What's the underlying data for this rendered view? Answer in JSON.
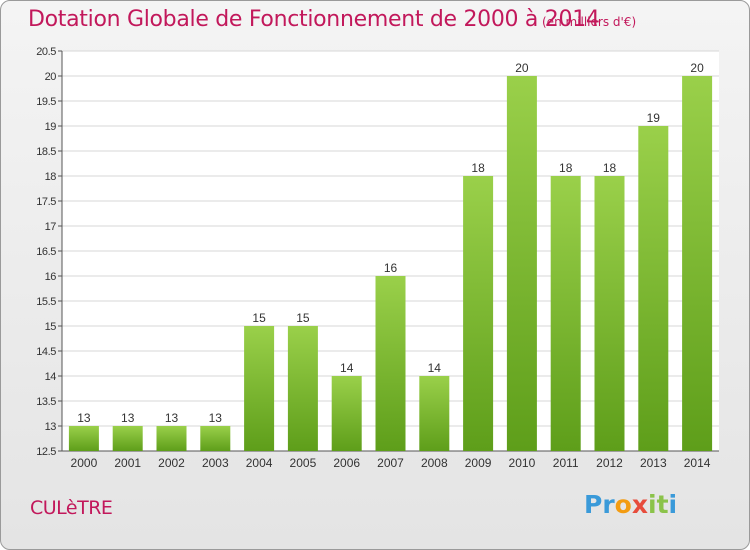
{
  "title": "Dotation Globale de Fonctionnement de 2000 à 2014",
  "subtitle": "(en milliers d'€)",
  "commune": "CULèTRE",
  "logo": {
    "letters": [
      "P",
      "r",
      "o",
      "x",
      "i",
      "t",
      "i"
    ],
    "colors": [
      "#3a9ad9",
      "#3a9ad9",
      "#f39c12",
      "#e74c3c",
      "#8bc34a",
      "#8bc34a",
      "#3a9ad9"
    ]
  },
  "colors": {
    "bar_top": "#9ad04a",
    "bar_bottom": "#5e9e1a",
    "title": "#c2185b",
    "grid": "#d7d7d7"
  },
  "chart_data": {
    "type": "bar",
    "categories": [
      "2000",
      "2001",
      "2002",
      "2003",
      "2004",
      "2005",
      "2006",
      "2007",
      "2008",
      "2009",
      "2010",
      "2011",
      "2012",
      "2013",
      "2014"
    ],
    "values": [
      13,
      13,
      13,
      13,
      15,
      15,
      14,
      16,
      14,
      18,
      20,
      18,
      18,
      19,
      20
    ],
    "value_labels": [
      "13",
      "13",
      "13",
      "13",
      "15",
      "15",
      "14",
      "16",
      "14",
      "18",
      "20",
      "18",
      "18",
      "19",
      "20"
    ],
    "ylim": [
      12.5,
      20.5
    ],
    "yticks": [
      "12.5",
      "13",
      "13.5",
      "14",
      "14.5",
      "15",
      "15.5",
      "16",
      "16.5",
      "17",
      "17.5",
      "18",
      "18.5",
      "19",
      "19.5",
      "20",
      "20.5"
    ],
    "grid": true
  }
}
